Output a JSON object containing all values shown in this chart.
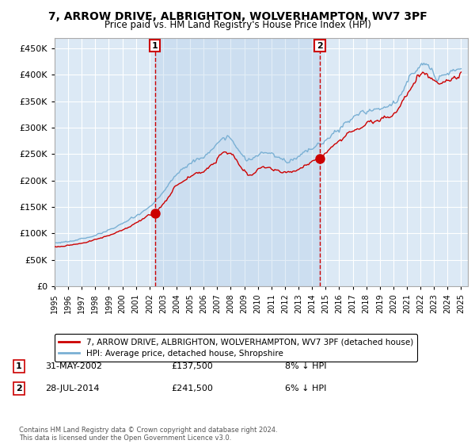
{
  "title": "7, ARROW DRIVE, ALBRIGHTON, WOLVERHAMPTON, WV7 3PF",
  "subtitle": "Price paid vs. HM Land Registry's House Price Index (HPI)",
  "ylim": [
    0,
    470000
  ],
  "yticks": [
    0,
    50000,
    100000,
    150000,
    200000,
    250000,
    300000,
    350000,
    400000,
    450000
  ],
  "xlim_start": 1995.0,
  "xlim_end": 2025.5,
  "bg_color": "#dce9f5",
  "grid_color": "#ffffff",
  "sale1_date": 2002.41,
  "sale1_price": 137500,
  "sale2_date": 2014.58,
  "sale2_price": 241500,
  "legend_line1": "7, ARROW DRIVE, ALBRIGHTON, WOLVERHAMPTON, WV7 3PF (detached house)",
  "legend_line2": "HPI: Average price, detached house, Shropshire",
  "footer": "Contains HM Land Registry data © Crown copyright and database right 2024.\nThis data is licensed under the Open Government Licence v3.0.",
  "red_color": "#cc0000",
  "hpi_color": "#7ab0d4",
  "shade_color": "#c8d8ed"
}
